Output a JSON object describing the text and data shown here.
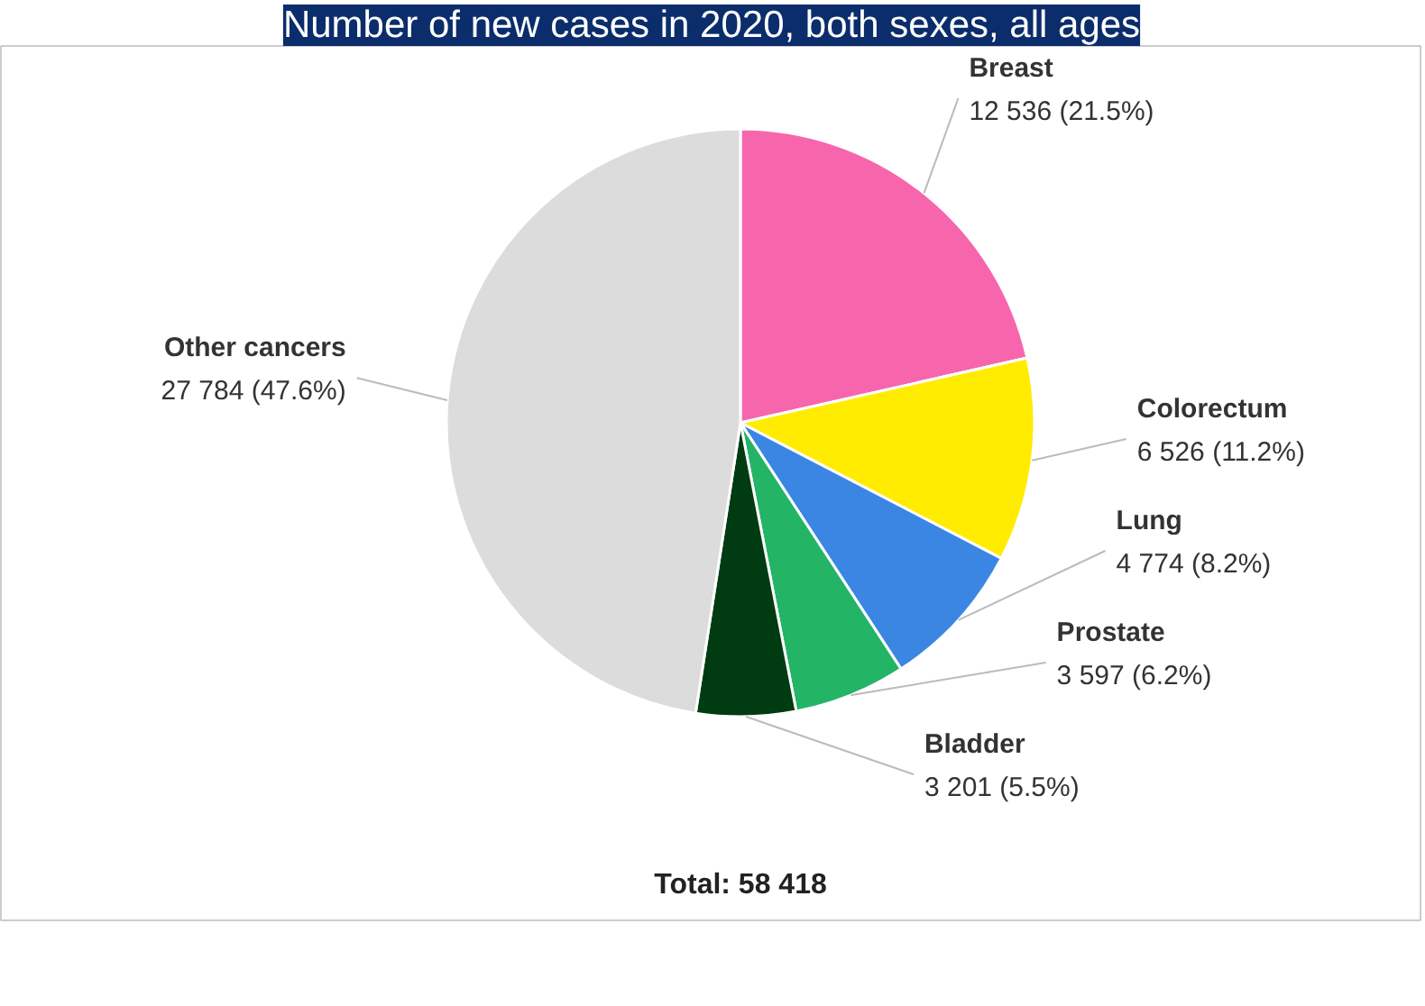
{
  "chart_data": {
    "type": "pie",
    "title": "Number of new cases in 2020, both sexes, all ages",
    "categories": [
      "Breast",
      "Colorectum",
      "Lung",
      "Prostate",
      "Bladder",
      "Other cancers"
    ],
    "values": [
      12536,
      6526,
      4774,
      3597,
      3201,
      27784
    ],
    "value_labels": [
      "12 536 (21.5%)",
      "6 526 (11.2%)",
      "4 774 (8.2%)",
      "3 597 (6.2%)",
      "3 201 (5.5%)",
      "27 784 (47.6%)"
    ],
    "colors": [
      "#f766ad",
      "#ffec00",
      "#3b86e3",
      "#23b466",
      "#003b12",
      "#dcdcdc"
    ],
    "annotations": [
      "Total: 58 418"
    ]
  }
}
